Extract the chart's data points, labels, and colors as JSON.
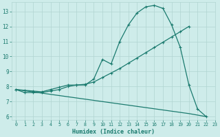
{
  "xlabel": "Humidex (Indice chaleur)",
  "bg_color": "#ceecea",
  "line_color": "#1a7a6e",
  "grid_color": "#b0d5d1",
  "xlim": [
    -0.5,
    23
  ],
  "ylim": [
    5.8,
    13.6
  ],
  "yticks": [
    6,
    7,
    8,
    9,
    10,
    11,
    12,
    13
  ],
  "xticks": [
    0,
    1,
    2,
    3,
    4,
    5,
    6,
    7,
    8,
    9,
    10,
    11,
    12,
    13,
    14,
    15,
    16,
    17,
    18,
    19,
    20,
    21,
    22,
    23
  ],
  "line1_x": [
    0,
    1,
    2,
    3,
    4,
    5,
    6,
    7,
    8,
    9,
    10,
    11,
    12,
    13,
    14,
    15,
    16,
    17,
    18,
    19,
    20,
    21,
    22
  ],
  "line1_y": [
    7.8,
    7.6,
    7.6,
    7.6,
    7.7,
    7.8,
    8.0,
    8.1,
    8.1,
    8.5,
    9.8,
    9.5,
    11.0,
    12.1,
    12.9,
    13.3,
    13.4,
    13.2,
    12.1,
    10.6,
    8.1,
    6.5,
    6.0
  ],
  "line2_x": [
    0,
    1,
    2,
    3,
    4,
    5,
    6,
    7,
    8,
    9,
    10,
    11,
    12,
    13,
    14,
    15,
    16,
    17,
    18,
    19,
    20
  ],
  "line2_y": [
    7.8,
    7.75,
    7.7,
    7.65,
    7.8,
    7.95,
    8.1,
    8.1,
    8.15,
    8.3,
    8.6,
    8.9,
    9.2,
    9.55,
    9.9,
    10.25,
    10.6,
    10.95,
    11.3,
    11.65,
    12.0
  ],
  "line3_x": [
    0,
    20,
    22
  ],
  "line3_y": [
    7.8,
    6.2,
    6.0
  ]
}
